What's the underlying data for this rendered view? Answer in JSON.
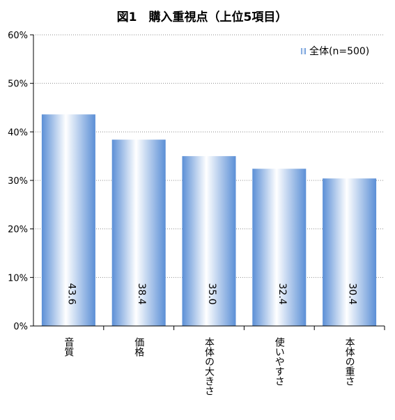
{
  "chart_data": {
    "type": "bar",
    "title": "図1　購入重視点（上位5項目）",
    "categories": [
      "音質",
      "価格",
      "本体の大きさ",
      "使いやすさ",
      "本体の重さ"
    ],
    "series": [
      {
        "name": "全体(n=500)",
        "values": [
          43.6,
          38.4,
          35.0,
          32.4,
          30.4
        ]
      }
    ],
    "data_labels": [
      "43.6",
      "38.4",
      "35.0",
      "32.4",
      "30.4"
    ],
    "ylim": [
      0,
      60
    ],
    "yticks": [
      0,
      10,
      20,
      30,
      40,
      50,
      60
    ],
    "ytick_labels": [
      "0%",
      "10%",
      "20%",
      "30%",
      "40%",
      "50%",
      "60%"
    ],
    "grid": true,
    "legend_position": "top-right",
    "bar_color": "#5b8fd6"
  }
}
